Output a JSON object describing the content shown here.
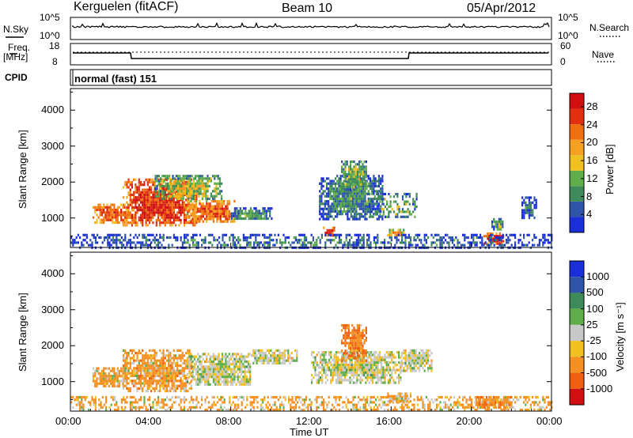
{
  "header": {
    "station": "Kerguelen (fitACF)",
    "beam": "Beam 10",
    "date": "05/Apr/2012"
  },
  "side_labels": {
    "nsky": "N.Sky",
    "nsearch": "N.Search",
    "freq": "Freq.",
    "freq_unit": "[MHz]",
    "nave": "Nave",
    "cpid": "CPID"
  },
  "scale_labels": {
    "nsky_top": "10^5",
    "nsky_bottom": "10^0",
    "nsearch_top": "10^5",
    "nsearch_bottom": "10^0",
    "freq_top": "18",
    "freq_bottom": "8",
    "nave_top": "60",
    "nave_bottom": "0"
  },
  "cpid_text": "normal (fast) 151",
  "colors": {
    "power": [
      "#1a2fd8",
      "#2f55a8",
      "#3f8a5a",
      "#5fae4a",
      "#f0c020",
      "#f5a020",
      "#f07010",
      "#e03010",
      "#d01010"
    ],
    "velocity": [
      "#1a2fd8",
      "#2f55a8",
      "#3f8a5a",
      "#5fae4a",
      "#c8c8c8",
      "#f0c020",
      "#f59020",
      "#f06010",
      "#d01010"
    ]
  },
  "chart_data": [
    {
      "type": "heatmap",
      "name": "power",
      "xlabel": "",
      "ylabel": "Slant Range [km]",
      "xlim_hours": [
        0,
        24
      ],
      "ylim_km": [
        180,
        4600
      ],
      "y_ticks": [
        "1000",
        "2000",
        "3000",
        "4000"
      ],
      "colorbar": {
        "label": "Power [dB]",
        "ticks": [
          "4",
          "8",
          "12",
          "16",
          "20",
          "24",
          "28"
        ],
        "range": [
          0,
          31
        ]
      },
      "regions": [
        {
          "t": [
            1.1,
            2.9
          ],
          "r": [
            900,
            1400
          ],
          "level": 24
        },
        {
          "t": [
            2.6,
            6.3
          ],
          "r": [
            780,
            2100
          ],
          "level": 27
        },
        {
          "t": [
            5.8,
            8.2
          ],
          "r": [
            900,
            1500
          ],
          "level": 24
        },
        {
          "t": [
            4.2,
            7.5
          ],
          "r": [
            1500,
            2200
          ],
          "level": 14
        },
        {
          "t": [
            8.0,
            10.0
          ],
          "r": [
            950,
            1300
          ],
          "level": 10
        },
        {
          "t": [
            12.4,
            15.6
          ],
          "r": [
            1000,
            2200
          ],
          "level": 9
        },
        {
          "t": [
            13.5,
            14.8
          ],
          "r": [
            1800,
            2600
          ],
          "level": 13
        },
        {
          "t": [
            14.8,
            17.3
          ],
          "r": [
            1000,
            1700
          ],
          "level": 11
        },
        {
          "t": [
            15.8,
            16.6
          ],
          "r": [
            500,
            700
          ],
          "level": 20
        },
        {
          "t": [
            12.6,
            13.2
          ],
          "r": [
            520,
            760
          ],
          "level": 26
        },
        {
          "t": [
            20.6,
            21.6
          ],
          "r": [
            300,
            600
          ],
          "level": 28
        },
        {
          "t": [
            0.0,
            24.0
          ],
          "r": [
            190,
            560
          ],
          "level": 7
        },
        {
          "t": [
            21.0,
            21.6
          ],
          "r": [
            650,
            1000
          ],
          "level": 10
        },
        {
          "t": [
            22.5,
            23.2
          ],
          "r": [
            1000,
            1600
          ],
          "level": 6
        }
      ]
    },
    {
      "type": "heatmap",
      "name": "velocity",
      "xlabel": "Time UT",
      "ylabel": "Slant Range [km]",
      "xlim_hours": [
        0,
        24
      ],
      "ylim_km": [
        180,
        4600
      ],
      "x_ticks": [
        "00:00",
        "04:00",
        "08:00",
        "12:00",
        "16:00",
        "20:00",
        "00:00"
      ],
      "y_ticks": [
        "1000",
        "2000",
        "3000",
        "4000"
      ],
      "colorbar": {
        "label": "Velocity [m s⁻¹]",
        "ticks": [
          "1000",
          "500",
          "100",
          "25",
          "-25",
          "-100",
          "-500",
          "-1000"
        ]
      },
      "regions": [
        {
          "t": [
            1.1,
            2.8
          ],
          "r": [
            900,
            1400
          ],
          "velocity": -120
        },
        {
          "t": [
            2.6,
            6.0
          ],
          "r": [
            750,
            1900
          ],
          "velocity": -150
        },
        {
          "t": [
            5.8,
            9.0
          ],
          "r": [
            900,
            1800
          ],
          "velocity": 0
        },
        {
          "t": [
            9.0,
            11.3
          ],
          "r": [
            1500,
            1900
          ],
          "velocity": 0
        },
        {
          "t": [
            12.0,
            16.5
          ],
          "r": [
            1000,
            1850
          ],
          "velocity": 0
        },
        {
          "t": [
            13.5,
            14.8
          ],
          "r": [
            1600,
            2600
          ],
          "velocity": -300
        },
        {
          "t": [
            16.5,
            18.0
          ],
          "r": [
            1300,
            1900
          ],
          "velocity": 0
        },
        {
          "t": [
            0.0,
            24.0
          ],
          "r": [
            190,
            600
          ],
          "velocity": -100
        },
        {
          "t": [
            15.8,
            17.0
          ],
          "r": [
            450,
            700
          ],
          "velocity": -60
        },
        {
          "t": [
            20.2,
            22.0
          ],
          "r": [
            300,
            600
          ],
          "velocity": -200
        }
      ]
    }
  ]
}
